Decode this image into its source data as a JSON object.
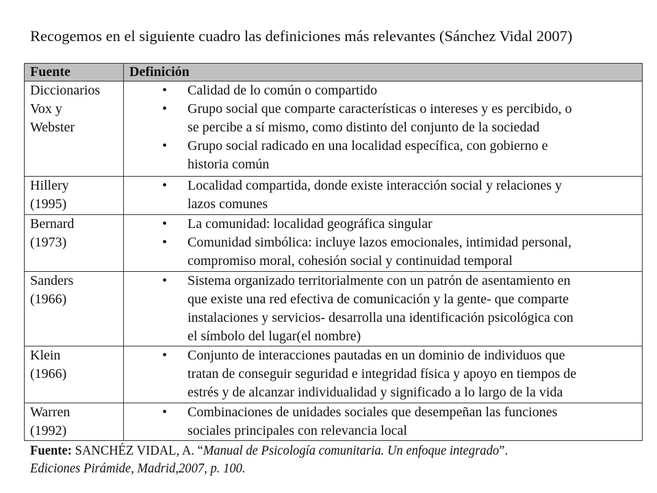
{
  "title": "Recogemos en el siguiente cuadro las definiciones más relevantes (Sánchez Vidal 2007)",
  "table": {
    "headers": [
      "Fuente",
      "Definición"
    ],
    "bullet": "•",
    "rows": [
      {
        "source": [
          "Diccionarios",
          "Vox y",
          "Webster"
        ],
        "bullets": [
          [
            "Calidad de lo común o compartido"
          ],
          [
            "Grupo social que comparte características o  intereses y es percibido, o",
            "se percibe a sí mismo, como distinto  del conjunto de la sociedad"
          ],
          [
            "Grupo social radicado en una localidad específica, con gobierno e",
            "historia común"
          ]
        ]
      },
      {
        "source": [
          "Hillery",
          "(1995)"
        ],
        "bullets": [
          [
            "Localidad compartida, donde existe interacción social y relaciones y",
            "lazos comunes"
          ]
        ]
      },
      {
        "source": [
          "Bernard",
          "(1973)"
        ],
        "bullets": [
          [
            "La comunidad: localidad geográfica singular"
          ],
          [
            "Comunidad simbólica: incluye lazos emocionales, intimidad personal,",
            "compromiso moral, cohesión social y continuidad temporal"
          ]
        ]
      },
      {
        "source": [
          "Sanders",
          "(1966)"
        ],
        "bullets": [
          [
            "Sistema organizado territorialmente con un patrón de asentamiento en",
            "que existe una red efectiva de comunicación y la gente- que comparte",
            "instalaciones y servicios- desarrolla una identificación psicológica con",
            "el símbolo del lugar(el nombre)"
          ]
        ]
      },
      {
        "source": [
          "Klein",
          "(1966)"
        ],
        "bullets": [
          [
            "Conjunto de interacciones pautadas en un dominio de individuos que",
            "tratan de conseguir seguridad e integridad física y apoyo en tiempos de",
            "estrés y de alcanzar individualidad y significado a lo largo de la vida"
          ]
        ]
      },
      {
        "source": [
          "Warren",
          "(1992)"
        ],
        "bullets": [
          [
            "Combinaciones de unidades sociales que desempeñan las funciones",
            "sociales principales con relevancia local"
          ]
        ]
      }
    ]
  },
  "footer": {
    "label": "Fuente:",
    "author": " SANCHÉZ VIDAL, A. “",
    "book": "Manual de Psicología comunitaria. Un enfoque integrado",
    "close": "”.",
    "publisher": "Ediciones Pirámide, Madrid,2007, p. 100."
  }
}
